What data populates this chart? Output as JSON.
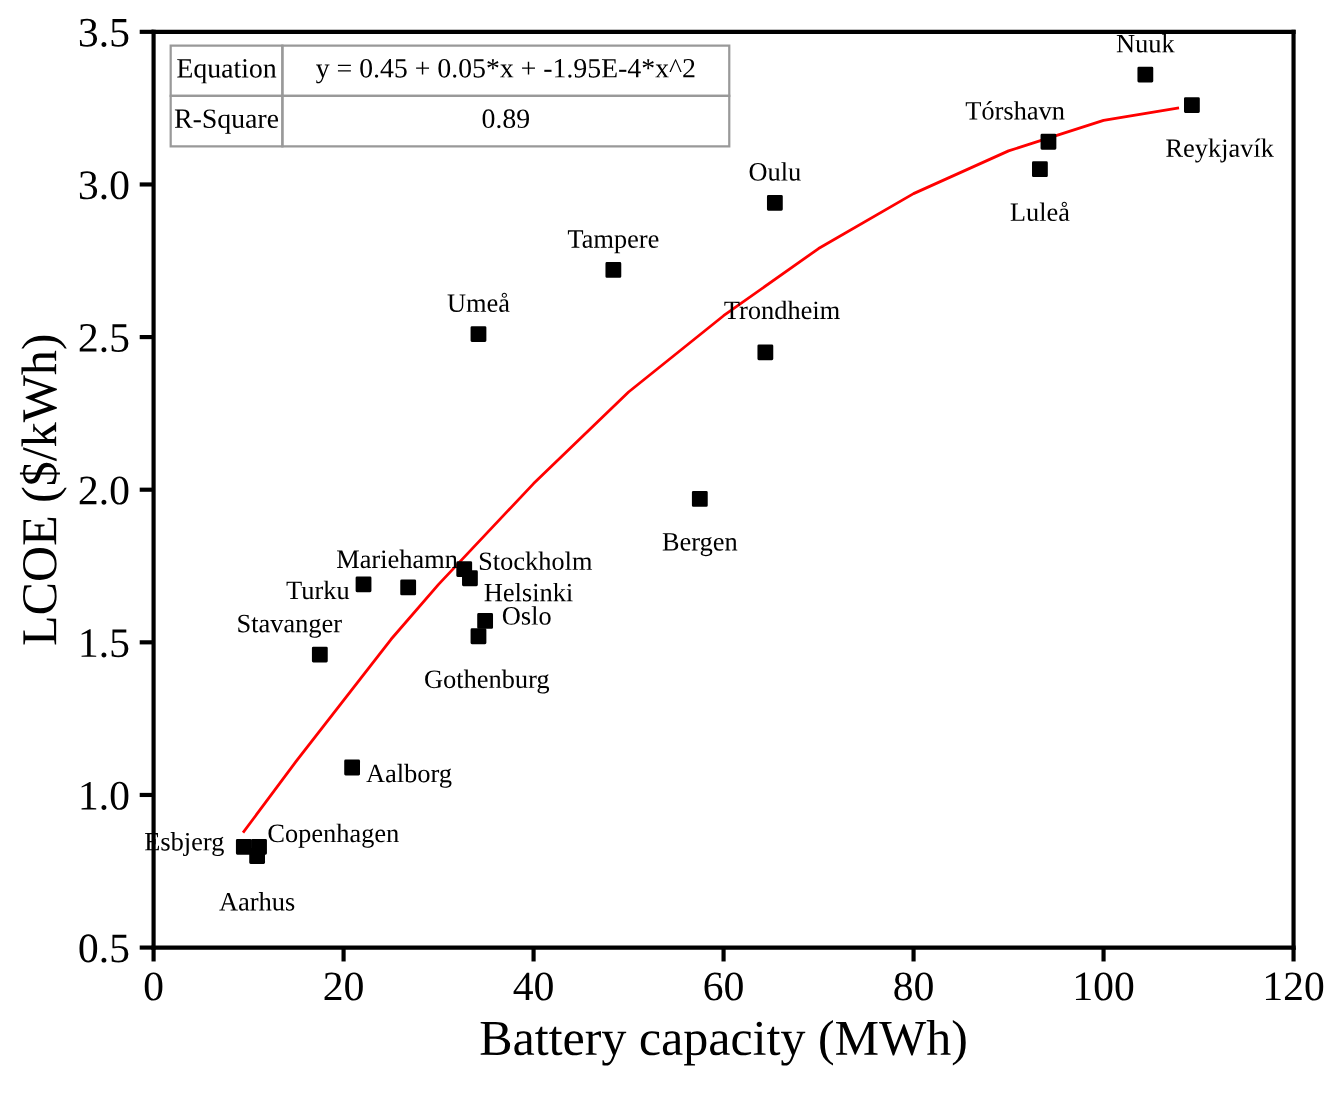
{
  "chart_data": {
    "type": "scatter",
    "xlabel": "Battery capacity (MWh)",
    "ylabel": "LCOE ($/kWh)",
    "xlim": [
      0,
      120
    ],
    "xticks": [
      0,
      20,
      40,
      60,
      80,
      100,
      120
    ],
    "ylim": [
      0.5,
      3.5
    ],
    "yticks": [
      {
        "value": 0.5,
        "label": "0.5"
      },
      {
        "value": 1.0,
        "label": "1.0"
      },
      {
        "value": 1.5,
        "label": "1.5"
      },
      {
        "value": 2.0,
        "label": "2.0"
      },
      {
        "value": 2.5,
        "label": "2.5"
      },
      {
        "value": 3.0,
        "label": "3.0"
      },
      {
        "value": 3.5,
        "label": "3.5"
      }
    ],
    "grid": false,
    "legend": false,
    "marker": "square",
    "series": [
      {
        "color": "#000000",
        "x": [
          104.4,
          109.3,
          94.2,
          93.3,
          65.4,
          64.4,
          57.5,
          48.4,
          34.2,
          32.7,
          33.3,
          26.8,
          22.1,
          34.9,
          34.2,
          17.5,
          20.9,
          9.5,
          11.1,
          10.9
        ],
        "values": [
          3.36,
          3.26,
          3.14,
          3.05,
          2.94,
          2.45,
          1.97,
          2.72,
          2.51,
          1.74,
          1.71,
          1.68,
          1.69,
          1.57,
          1.52,
          1.46,
          1.09,
          0.83,
          0.83,
          0.8
        ]
      },
      {
        "type": "line",
        "color": "#ff0000",
        "marker": "none",
        "x": [
          9.5,
          15,
          20,
          25,
          30,
          40,
          50,
          60,
          70,
          80,
          90,
          100,
          107.8
        ],
        "values": [
          0.88,
          1.11,
          1.31,
          1.51,
          1.69,
          2.02,
          2.32,
          2.57,
          2.79,
          2.97,
          3.11,
          3.21,
          3.25
        ]
      }
    ],
    "annotations": [
      "Equation",
      "y = 0.45 + 0.05*x + -1.95E-4*x^2",
      "R-Square",
      "0.89",
      {
        "text": "Nuuk",
        "x": 104.4,
        "y": 3.36
      },
      {
        "text": "Reykjavík",
        "x": 109.3,
        "y": 3.26
      },
      {
        "text": "Tórshavn",
        "x": 94.2,
        "y": 3.14
      },
      {
        "text": "Luleå",
        "x": 93.3,
        "y": 3.05
      },
      {
        "text": "Oulu",
        "x": 65.4,
        "y": 2.94
      },
      {
        "text": "Trondheim",
        "x": 64.4,
        "y": 2.45
      },
      {
        "text": "Bergen",
        "x": 57.5,
        "y": 1.97
      },
      {
        "text": "Tampere",
        "x": 48.4,
        "y": 2.72
      },
      {
        "text": "Umeå",
        "x": 34.2,
        "y": 2.51
      },
      {
        "text": "Stockholm",
        "x": 32.7,
        "y": 1.74
      },
      {
        "text": "Helsinki",
        "x": 33.3,
        "y": 1.71
      },
      {
        "text": "Mariehamn",
        "x": 26.8,
        "y": 1.68
      },
      {
        "text": "Turku",
        "x": 22.1,
        "y": 1.69
      },
      {
        "text": "Oslo",
        "x": 34.9,
        "y": 1.57
      },
      {
        "text": "Gothenburg",
        "x": 34.2,
        "y": 1.52
      },
      {
        "text": "Stavanger",
        "x": 17.5,
        "y": 1.46
      },
      {
        "text": "Aalborg",
        "x": 20.9,
        "y": 1.09
      },
      {
        "text": "Esbjerg",
        "x": 9.5,
        "y": 0.83
      },
      {
        "text": "Copenhagen",
        "x": 11.1,
        "y": 0.83
      },
      {
        "text": "Aarhus",
        "x": 10.9,
        "y": 0.8
      }
    ]
  }
}
